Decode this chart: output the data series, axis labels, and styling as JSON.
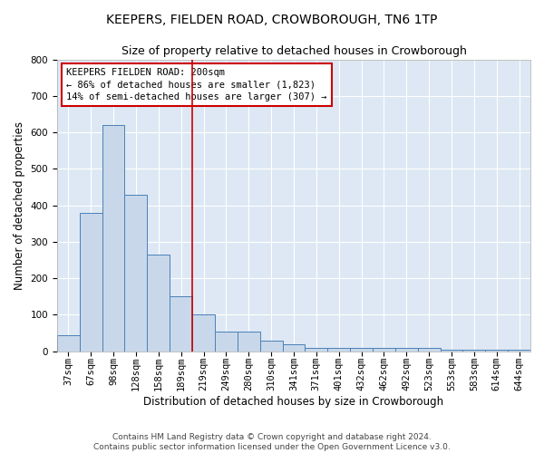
{
  "title": "KEEPERS, FIELDEN ROAD, CROWBOROUGH, TN6 1TP",
  "subtitle": "Size of property relative to detached houses in Crowborough",
  "xlabel": "Distribution of detached houses by size in Crowborough",
  "ylabel": "Number of detached properties",
  "bar_labels": [
    "37sqm",
    "67sqm",
    "98sqm",
    "128sqm",
    "158sqm",
    "189sqm",
    "219sqm",
    "249sqm",
    "280sqm",
    "310sqm",
    "341sqm",
    "371sqm",
    "401sqm",
    "432sqm",
    "462sqm",
    "492sqm",
    "523sqm",
    "553sqm",
    "583sqm",
    "614sqm",
    "644sqm"
  ],
  "bar_values": [
    45,
    380,
    620,
    430,
    265,
    150,
    100,
    55,
    55,
    30,
    20,
    10,
    10,
    10,
    10,
    10,
    10,
    5,
    5,
    5,
    5
  ],
  "bar_color": "#c8d8ea",
  "bar_edgecolor": "#4a80b8",
  "vline_x": 5.5,
  "vline_color": "#cc0000",
  "annotation_title": "KEEPERS FIELDEN ROAD: 200sqm",
  "annotation_line1": "← 86% of detached houses are smaller (1,823)",
  "annotation_line2": "14% of semi-detached houses are larger (307) →",
  "annotation_box_color": "#cc0000",
  "ylim": [
    0,
    800
  ],
  "yticks": [
    0,
    100,
    200,
    300,
    400,
    500,
    600,
    700,
    800
  ],
  "background_color": "#dde8f4",
  "footer_line1": "Contains HM Land Registry data © Crown copyright and database right 2024.",
  "footer_line2": "Contains public sector information licensed under the Open Government Licence v3.0.",
  "title_fontsize": 10,
  "subtitle_fontsize": 9,
  "xlabel_fontsize": 8.5,
  "ylabel_fontsize": 8.5,
  "tick_fontsize": 7.5,
  "annotation_fontsize": 7.5,
  "footer_fontsize": 6.5
}
